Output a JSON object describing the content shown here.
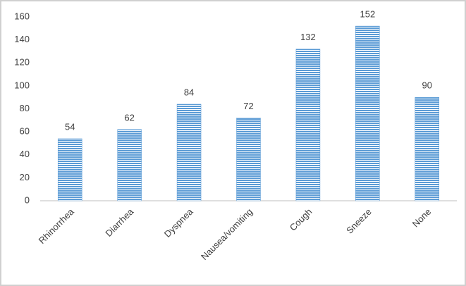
{
  "chart_data": {
    "type": "bar",
    "categories": [
      "Rhinorrhea",
      "Diarrhea",
      "Dyspnea",
      "Nausea/vomiting",
      "Cough",
      "Sneeze",
      "None"
    ],
    "values": [
      54,
      62,
      84,
      72,
      132,
      152,
      90
    ],
    "color": "#5b9bd5",
    "ylim": [
      0,
      160
    ],
    "yticks": [
      0,
      20,
      40,
      60,
      80,
      100,
      120,
      140,
      160
    ],
    "grid": false,
    "data_labels": true
  }
}
